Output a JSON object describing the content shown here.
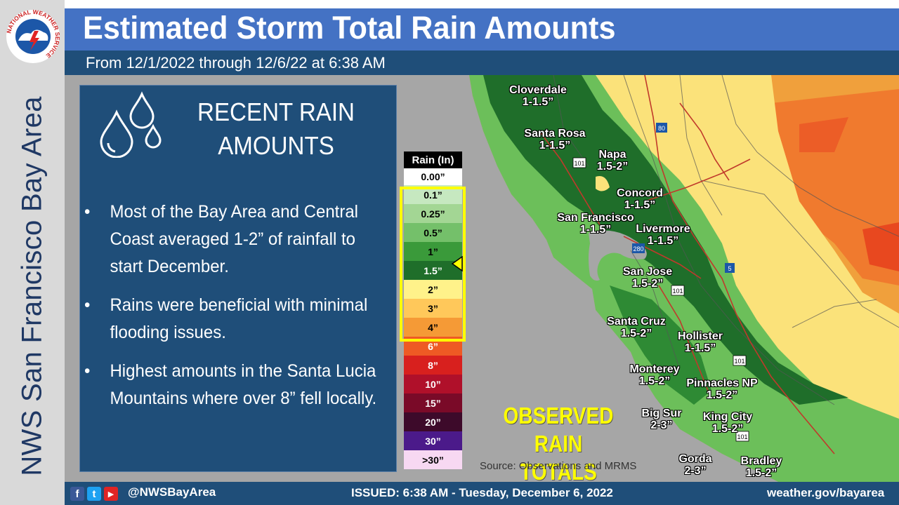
{
  "sidebar": {
    "title": "NWS San Francisco Bay Area",
    "logo_text": "NATIONAL WEATHER SERVICE"
  },
  "header": {
    "title": "Estimated Storm Total Rain Amounts",
    "subtitle": "From 12/1/2022 through 12/6/22 at 6:38 AM"
  },
  "panel": {
    "heading_line1": "RECENT RAIN",
    "heading_line2": "AMOUNTS",
    "bullets": [
      "Most of the Bay Area and Central Coast averaged 1-2” of rainfall to start December.",
      "Rains were beneficial with minimal flooding issues.",
      "Highest amounts in the Santa Lucia Mountains where over 8” fell locally."
    ]
  },
  "legend": {
    "header": "Rain (In)",
    "items": [
      {
        "label": "0.00”",
        "color": "#ffffff",
        "text": "#000000"
      },
      {
        "label": "0.1”",
        "color": "#c6e8c0",
        "text": "#000000"
      },
      {
        "label": "0.25”",
        "color": "#a3d694",
        "text": "#000000"
      },
      {
        "label": "0.5”",
        "color": "#74c06a",
        "text": "#000000"
      },
      {
        "label": "1”",
        "color": "#3a9a3a",
        "text": "#000000"
      },
      {
        "label": "1.5”",
        "color": "#1f6e2a",
        "text": "#ffffff"
      },
      {
        "label": "2”",
        "color": "#fff28a",
        "text": "#000000"
      },
      {
        "label": "3”",
        "color": "#ffc85a",
        "text": "#000000"
      },
      {
        "label": "4”",
        "color": "#f59a36",
        "text": "#000000"
      },
      {
        "label": "6”",
        "color": "#ee5a24",
        "text": "#ffffff"
      },
      {
        "label": "8”",
        "color": "#d8201e",
        "text": "#ffffff"
      },
      {
        "label": "10”",
        "color": "#b0102a",
        "text": "#ffffff"
      },
      {
        "label": "15”",
        "color": "#7a0a28",
        "text": "#ffffff"
      },
      {
        "label": "20”",
        "color": "#3d0a2a",
        "text": "#ffffff"
      },
      {
        "label": "30”",
        "color": "#4b1a8a",
        "text": "#ffffff"
      },
      {
        "label": ">30”",
        "color": "#f7d8f2",
        "text": "#000000"
      }
    ]
  },
  "map": {
    "observed_line1": "OBSERVED",
    "observed_line2": "RAIN TOTALS",
    "source": "Source: Observations and MRMS",
    "cities": [
      {
        "name": "Cloverdale",
        "amount": "1-1.5”"
      },
      {
        "name": "Santa Rosa",
        "amount": "1-1.5”"
      },
      {
        "name": "Napa",
        "amount": "1.5-2”"
      },
      {
        "name": "Concord",
        "amount": "1-1.5”"
      },
      {
        "name": "San Francisco",
        "amount": "1-1.5”"
      },
      {
        "name": "Livermore",
        "amount": "1-1.5”"
      },
      {
        "name": "San Jose",
        "amount": "1.5-2”"
      },
      {
        "name": "Santa Cruz",
        "amount": "1.5-2”"
      },
      {
        "name": "Hollister",
        "amount": "1-1.5”"
      },
      {
        "name": "Monterey",
        "amount": "1.5-2”"
      },
      {
        "name": "Pinnacles NP",
        "amount": "1.5-2”"
      },
      {
        "name": "Big Sur",
        "amount": "2-3”"
      },
      {
        "name": "King City",
        "amount": "1.5-2”"
      },
      {
        "name": "Gorda",
        "amount": "2-3”"
      },
      {
        "name": "Bradley",
        "amount": "1.5-2”"
      }
    ],
    "highways": [
      "80",
      "101",
      "101",
      "5",
      "280",
      "101",
      "101"
    ]
  },
  "footer": {
    "handle": "@NWSBayArea",
    "issued": "ISSUED: 6:38 AM - Tuesday, December 6, 2022",
    "website": "weather.gov/bayarea",
    "icons": {
      "facebook": "f",
      "twitter": "t",
      "youtube": "▶"
    }
  }
}
